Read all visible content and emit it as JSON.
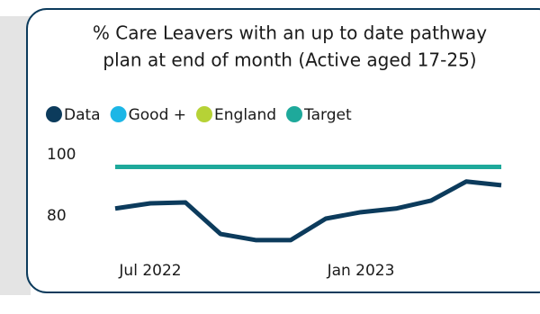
{
  "chart_data": {
    "type": "line",
    "title": [
      "% Care Leavers with an up to date pathway",
      "plan at end of month (Active aged 17-25)"
    ],
    "categories": [
      null,
      "Jul 2022",
      null,
      null,
      null,
      null,
      null,
      "Jan 2023",
      null,
      null,
      null,
      null
    ],
    "series": [
      {
        "name": "Data",
        "color": "#0c3b5c",
        "values": [
          82.4,
          84.1,
          84.4,
          74.1,
          72.1,
          72.1,
          79.1,
          81.2,
          82.4,
          85,
          91.2,
          90
        ]
      },
      {
        "name": "Good +",
        "color": "#1cb6e6",
        "values": [
          null,
          null,
          null,
          null,
          null,
          null,
          null,
          null,
          null,
          null,
          null,
          null
        ]
      },
      {
        "name": "England",
        "color": "#b6d236",
        "values": [
          null,
          null,
          null,
          null,
          null,
          null,
          null,
          null,
          null,
          null,
          null,
          null
        ]
      },
      {
        "name": "Target",
        "color": "#1ea99b",
        "values": [
          96,
          96,
          96,
          96,
          96,
          96,
          96,
          96,
          96,
          96,
          96,
          96
        ]
      }
    ],
    "ylim": [
      70,
      102
    ],
    "yticks": [
      80,
      100
    ]
  }
}
